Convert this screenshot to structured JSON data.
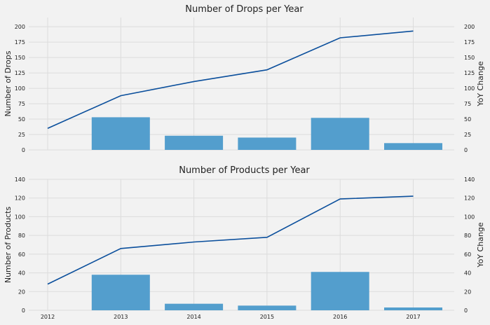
{
  "chart_data": [
    {
      "type": "bar+line",
      "title": "Number of Drops per Year",
      "ylabel": "Number of Drops",
      "y2label": "YoY Change",
      "x": [
        "2012",
        "2013",
        "2014",
        "2015",
        "2016",
        "2017"
      ],
      "xticks_visible": false,
      "ylim": [
        0,
        215
      ],
      "yticks": [
        0,
        25,
        50,
        75,
        100,
        125,
        150,
        175,
        200
      ],
      "y2ticks": [
        0,
        25,
        50,
        75,
        100,
        125,
        150,
        175,
        200
      ],
      "grid": true,
      "bars": {
        "x": [
          "2013",
          "2014",
          "2015",
          "2016",
          "2017"
        ],
        "values": [
          53,
          23,
          20,
          52,
          11
        ]
      },
      "line": {
        "x": [
          "2012",
          "2013",
          "2014",
          "2015",
          "2016",
          "2017"
        ],
        "values": [
          35,
          88,
          111,
          130,
          182,
          193
        ]
      }
    },
    {
      "type": "bar+line",
      "title": "Number of Products per Year",
      "ylabel": "Number of Products",
      "y2label": "YoY Change",
      "x": [
        "2012",
        "2013",
        "2014",
        "2015",
        "2016",
        "2017"
      ],
      "xticks_visible": true,
      "ylim": [
        0,
        140
      ],
      "yticks": [
        0,
        20,
        40,
        60,
        80,
        100,
        120,
        140
      ],
      "y2ticks": [
        0,
        20,
        40,
        60,
        80,
        100,
        120,
        140
      ],
      "grid": true,
      "bars": {
        "x": [
          "2013",
          "2014",
          "2015",
          "2016",
          "2017"
        ],
        "values": [
          38,
          7,
          5,
          41,
          3
        ]
      },
      "line": {
        "x": [
          "2012",
          "2013",
          "2014",
          "2015",
          "2016",
          "2017"
        ],
        "values": [
          28,
          66,
          73,
          78,
          119,
          122
        ]
      }
    }
  ]
}
